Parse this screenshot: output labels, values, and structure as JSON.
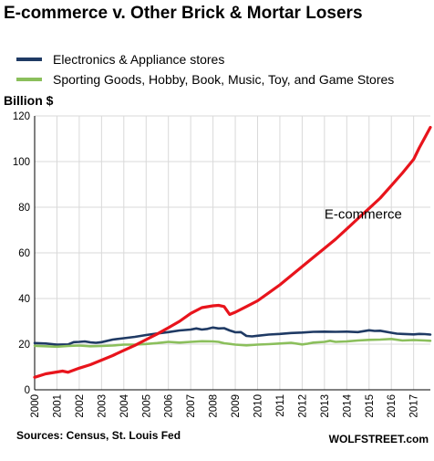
{
  "chart_data": {
    "type": "line",
    "title": "E-commerce v. Other Brick & Mortar Losers",
    "ylabel": "Billion $",
    "ylim": [
      0,
      120
    ],
    "yticks": [
      "0",
      "20",
      "40",
      "60",
      "80",
      "100",
      "120"
    ],
    "xlim": [
      2000,
      2017.75
    ],
    "xticks": [
      "2000",
      "2001",
      "2002",
      "2003",
      "2004",
      "2005",
      "2006",
      "2007",
      "2008",
      "2009",
      "2010",
      "2011",
      "2012",
      "2013",
      "2014",
      "2015",
      "2016",
      "2017"
    ],
    "grid": true,
    "annotation": "E-commerce",
    "series": [
      {
        "name": "Electronics & Appliance stores",
        "color": "#1f3a64",
        "points": [
          [
            2000.0,
            20.5
          ],
          [
            2000.5,
            20.3
          ],
          [
            2001.0,
            19.8
          ],
          [
            2001.5,
            19.9
          ],
          [
            2001.75,
            20.9
          ],
          [
            2002.0,
            21.0
          ],
          [
            2002.25,
            21.2
          ],
          [
            2002.5,
            20.8
          ],
          [
            2002.75,
            20.6
          ],
          [
            2003.0,
            20.9
          ],
          [
            2003.5,
            22.0
          ],
          [
            2004.0,
            22.6
          ],
          [
            2004.5,
            23.2
          ],
          [
            2005.0,
            24.0
          ],
          [
            2005.5,
            24.7
          ],
          [
            2006.0,
            25.3
          ],
          [
            2006.5,
            26.0
          ],
          [
            2007.0,
            26.4
          ],
          [
            2007.25,
            26.9
          ],
          [
            2007.5,
            26.4
          ],
          [
            2007.75,
            26.7
          ],
          [
            2008.0,
            27.3
          ],
          [
            2008.25,
            26.9
          ],
          [
            2008.5,
            27.0
          ],
          [
            2008.75,
            26.0
          ],
          [
            2009.0,
            25.2
          ],
          [
            2009.25,
            25.3
          ],
          [
            2009.5,
            23.6
          ],
          [
            2009.75,
            23.4
          ],
          [
            2010.0,
            23.7
          ],
          [
            2010.5,
            24.2
          ],
          [
            2011.0,
            24.5
          ],
          [
            2011.5,
            24.9
          ],
          [
            2012.0,
            25.1
          ],
          [
            2012.5,
            25.4
          ],
          [
            2013.0,
            25.5
          ],
          [
            2013.5,
            25.4
          ],
          [
            2014.0,
            25.5
          ],
          [
            2014.5,
            25.3
          ],
          [
            2015.0,
            26.1
          ],
          [
            2015.25,
            25.8
          ],
          [
            2015.5,
            25.9
          ],
          [
            2016.0,
            25.0
          ],
          [
            2016.25,
            24.6
          ],
          [
            2016.5,
            24.5
          ],
          [
            2017.0,
            24.3
          ],
          [
            2017.25,
            24.5
          ],
          [
            2017.5,
            24.4
          ],
          [
            2017.75,
            24.2
          ]
        ]
      },
      {
        "name": "Sporting Goods, Hobby, Book, Music, Toy, and Game Stores",
        "color": "#8bbf5c",
        "points": [
          [
            2000.0,
            19.3
          ],
          [
            2000.5,
            19.1
          ],
          [
            2001.0,
            18.9
          ],
          [
            2001.5,
            19.2
          ],
          [
            2002.0,
            19.4
          ],
          [
            2002.5,
            19.1
          ],
          [
            2003.0,
            19.2
          ],
          [
            2003.5,
            19.4
          ],
          [
            2004.0,
            19.8
          ],
          [
            2004.5,
            19.8
          ],
          [
            2005.0,
            20.1
          ],
          [
            2005.5,
            20.5
          ],
          [
            2006.0,
            21.0
          ],
          [
            2006.5,
            20.7
          ],
          [
            2007.0,
            21.0
          ],
          [
            2007.5,
            21.3
          ],
          [
            2008.0,
            21.2
          ],
          [
            2008.25,
            21.0
          ],
          [
            2008.5,
            20.4
          ],
          [
            2009.0,
            19.8
          ],
          [
            2009.5,
            19.5
          ],
          [
            2010.0,
            19.8
          ],
          [
            2010.5,
            20.0
          ],
          [
            2011.0,
            20.3
          ],
          [
            2011.5,
            20.6
          ],
          [
            2012.0,
            19.9
          ],
          [
            2012.25,
            20.2
          ],
          [
            2012.5,
            20.7
          ],
          [
            2013.0,
            21.0
          ],
          [
            2013.25,
            21.5
          ],
          [
            2013.5,
            21.0
          ],
          [
            2014.0,
            21.2
          ],
          [
            2014.5,
            21.6
          ],
          [
            2015.0,
            21.9
          ],
          [
            2015.5,
            22.0
          ],
          [
            2016.0,
            22.3
          ],
          [
            2016.5,
            21.6
          ],
          [
            2017.0,
            21.8
          ],
          [
            2017.5,
            21.6
          ],
          [
            2017.75,
            21.5
          ]
        ]
      },
      {
        "name": "E-commerce",
        "color": "#e8141c",
        "points": [
          [
            2000.0,
            5.5
          ],
          [
            2000.5,
            7.0
          ],
          [
            2001.0,
            7.8
          ],
          [
            2001.25,
            8.2
          ],
          [
            2001.5,
            7.7
          ],
          [
            2002.0,
            9.5
          ],
          [
            2002.5,
            11.0
          ],
          [
            2003.0,
            13.0
          ],
          [
            2003.5,
            15.0
          ],
          [
            2004.0,
            17.3
          ],
          [
            2004.5,
            19.5
          ],
          [
            2005.0,
            22.0
          ],
          [
            2005.5,
            24.5
          ],
          [
            2006.0,
            27.2
          ],
          [
            2006.5,
            30.0
          ],
          [
            2007.0,
            33.5
          ],
          [
            2007.5,
            36.0
          ],
          [
            2008.0,
            36.8
          ],
          [
            2008.25,
            37.0
          ],
          [
            2008.5,
            36.5
          ],
          [
            2008.75,
            33.0
          ],
          [
            2009.0,
            34.0
          ],
          [
            2009.5,
            36.5
          ],
          [
            2010.0,
            39.0
          ],
          [
            2010.5,
            42.5
          ],
          [
            2011.0,
            46.0
          ],
          [
            2011.5,
            50.0
          ],
          [
            2012.0,
            54.0
          ],
          [
            2012.5,
            58.0
          ],
          [
            2013.0,
            62.0
          ],
          [
            2013.5,
            66.0
          ],
          [
            2014.0,
            70.5
          ],
          [
            2014.5,
            75.0
          ],
          [
            2015.0,
            79.5
          ],
          [
            2015.5,
            84.0
          ],
          [
            2016.0,
            89.5
          ],
          [
            2016.5,
            95.0
          ],
          [
            2017.0,
            101.0
          ],
          [
            2017.25,
            106.0
          ],
          [
            2017.5,
            110.5
          ],
          [
            2017.75,
            115.0
          ]
        ]
      }
    ]
  },
  "footer": {
    "source": "Sources: Census, St. Louis Fed",
    "brand": "WOLFSTREET.com"
  }
}
